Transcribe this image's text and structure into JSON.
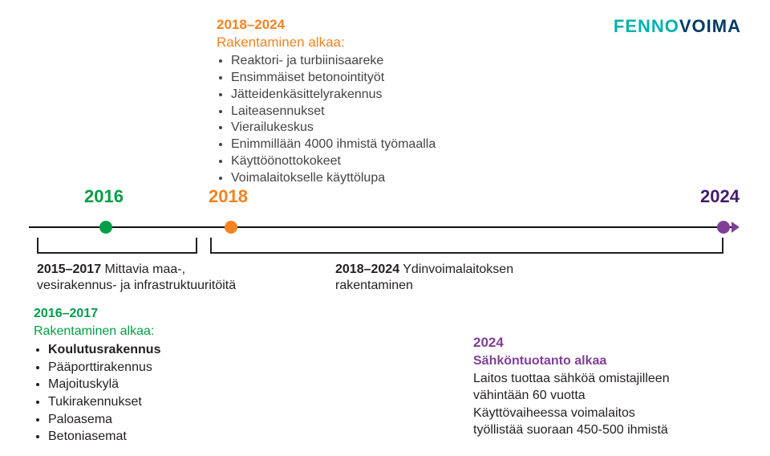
{
  "logo": {
    "text_teal": "FENNO",
    "text_navy": "VOIMA"
  },
  "top_block": {
    "year_range": "2018–2024",
    "subtitle": "Rakentaminen alkaa:",
    "items": [
      "Reaktori- ja turbiinisaareke",
      "Ensimmäiset betonointityöt",
      "Jätteidenkäsittelyrakennus",
      "Laiteasennukset",
      "Vierailukeskus",
      "Enimmillään 4000 ihmistä työmaalla",
      "Käyttöönottokokeet",
      "Voimalaitokselle käyttölupa"
    ]
  },
  "axis_years": {
    "y2016": "2016",
    "y2018": "2018",
    "y2024": "2024"
  },
  "colors": {
    "green": "#009e46",
    "orange": "#f58220",
    "purple": "#7e3f98",
    "dark_purple": "#451c6b",
    "teal": "#00b1b0",
    "navy": "#003a63",
    "text": "#231f20"
  },
  "under_left": {
    "years": "2015–2017",
    "rest": " Mittavia maa-,\nvesirakennus- ja infrastruktuuritöitä"
  },
  "under_right": {
    "years": "2018–2024",
    "rest": " Ydinvoimalaitoksen\nrakentaminen"
  },
  "bottom_left": {
    "years": "2016–2017",
    "subtitle": "Rakentaminen alkaa:",
    "items": [
      {
        "label": "Koulutusrakennus",
        "bold": true
      },
      {
        "label": "Pääporttirakennus",
        "bold": false
      },
      {
        "label": "Majoituskylä",
        "bold": false
      },
      {
        "label": "Tukirakennukset",
        "bold": false
      },
      {
        "label": "Paloasema",
        "bold": false
      },
      {
        "label": "Betoniasemat",
        "bold": false
      }
    ]
  },
  "bottom_right": {
    "year": "2024",
    "title": "Sähköntuotanto alkaa",
    "body": "Laitos tuottaa sähköä omistajilleen\nvähintään 60 vuotta\nKäyttövaiheessa voimalaitos\ntyöllistää suoraan 450-500 ihmistä"
  }
}
